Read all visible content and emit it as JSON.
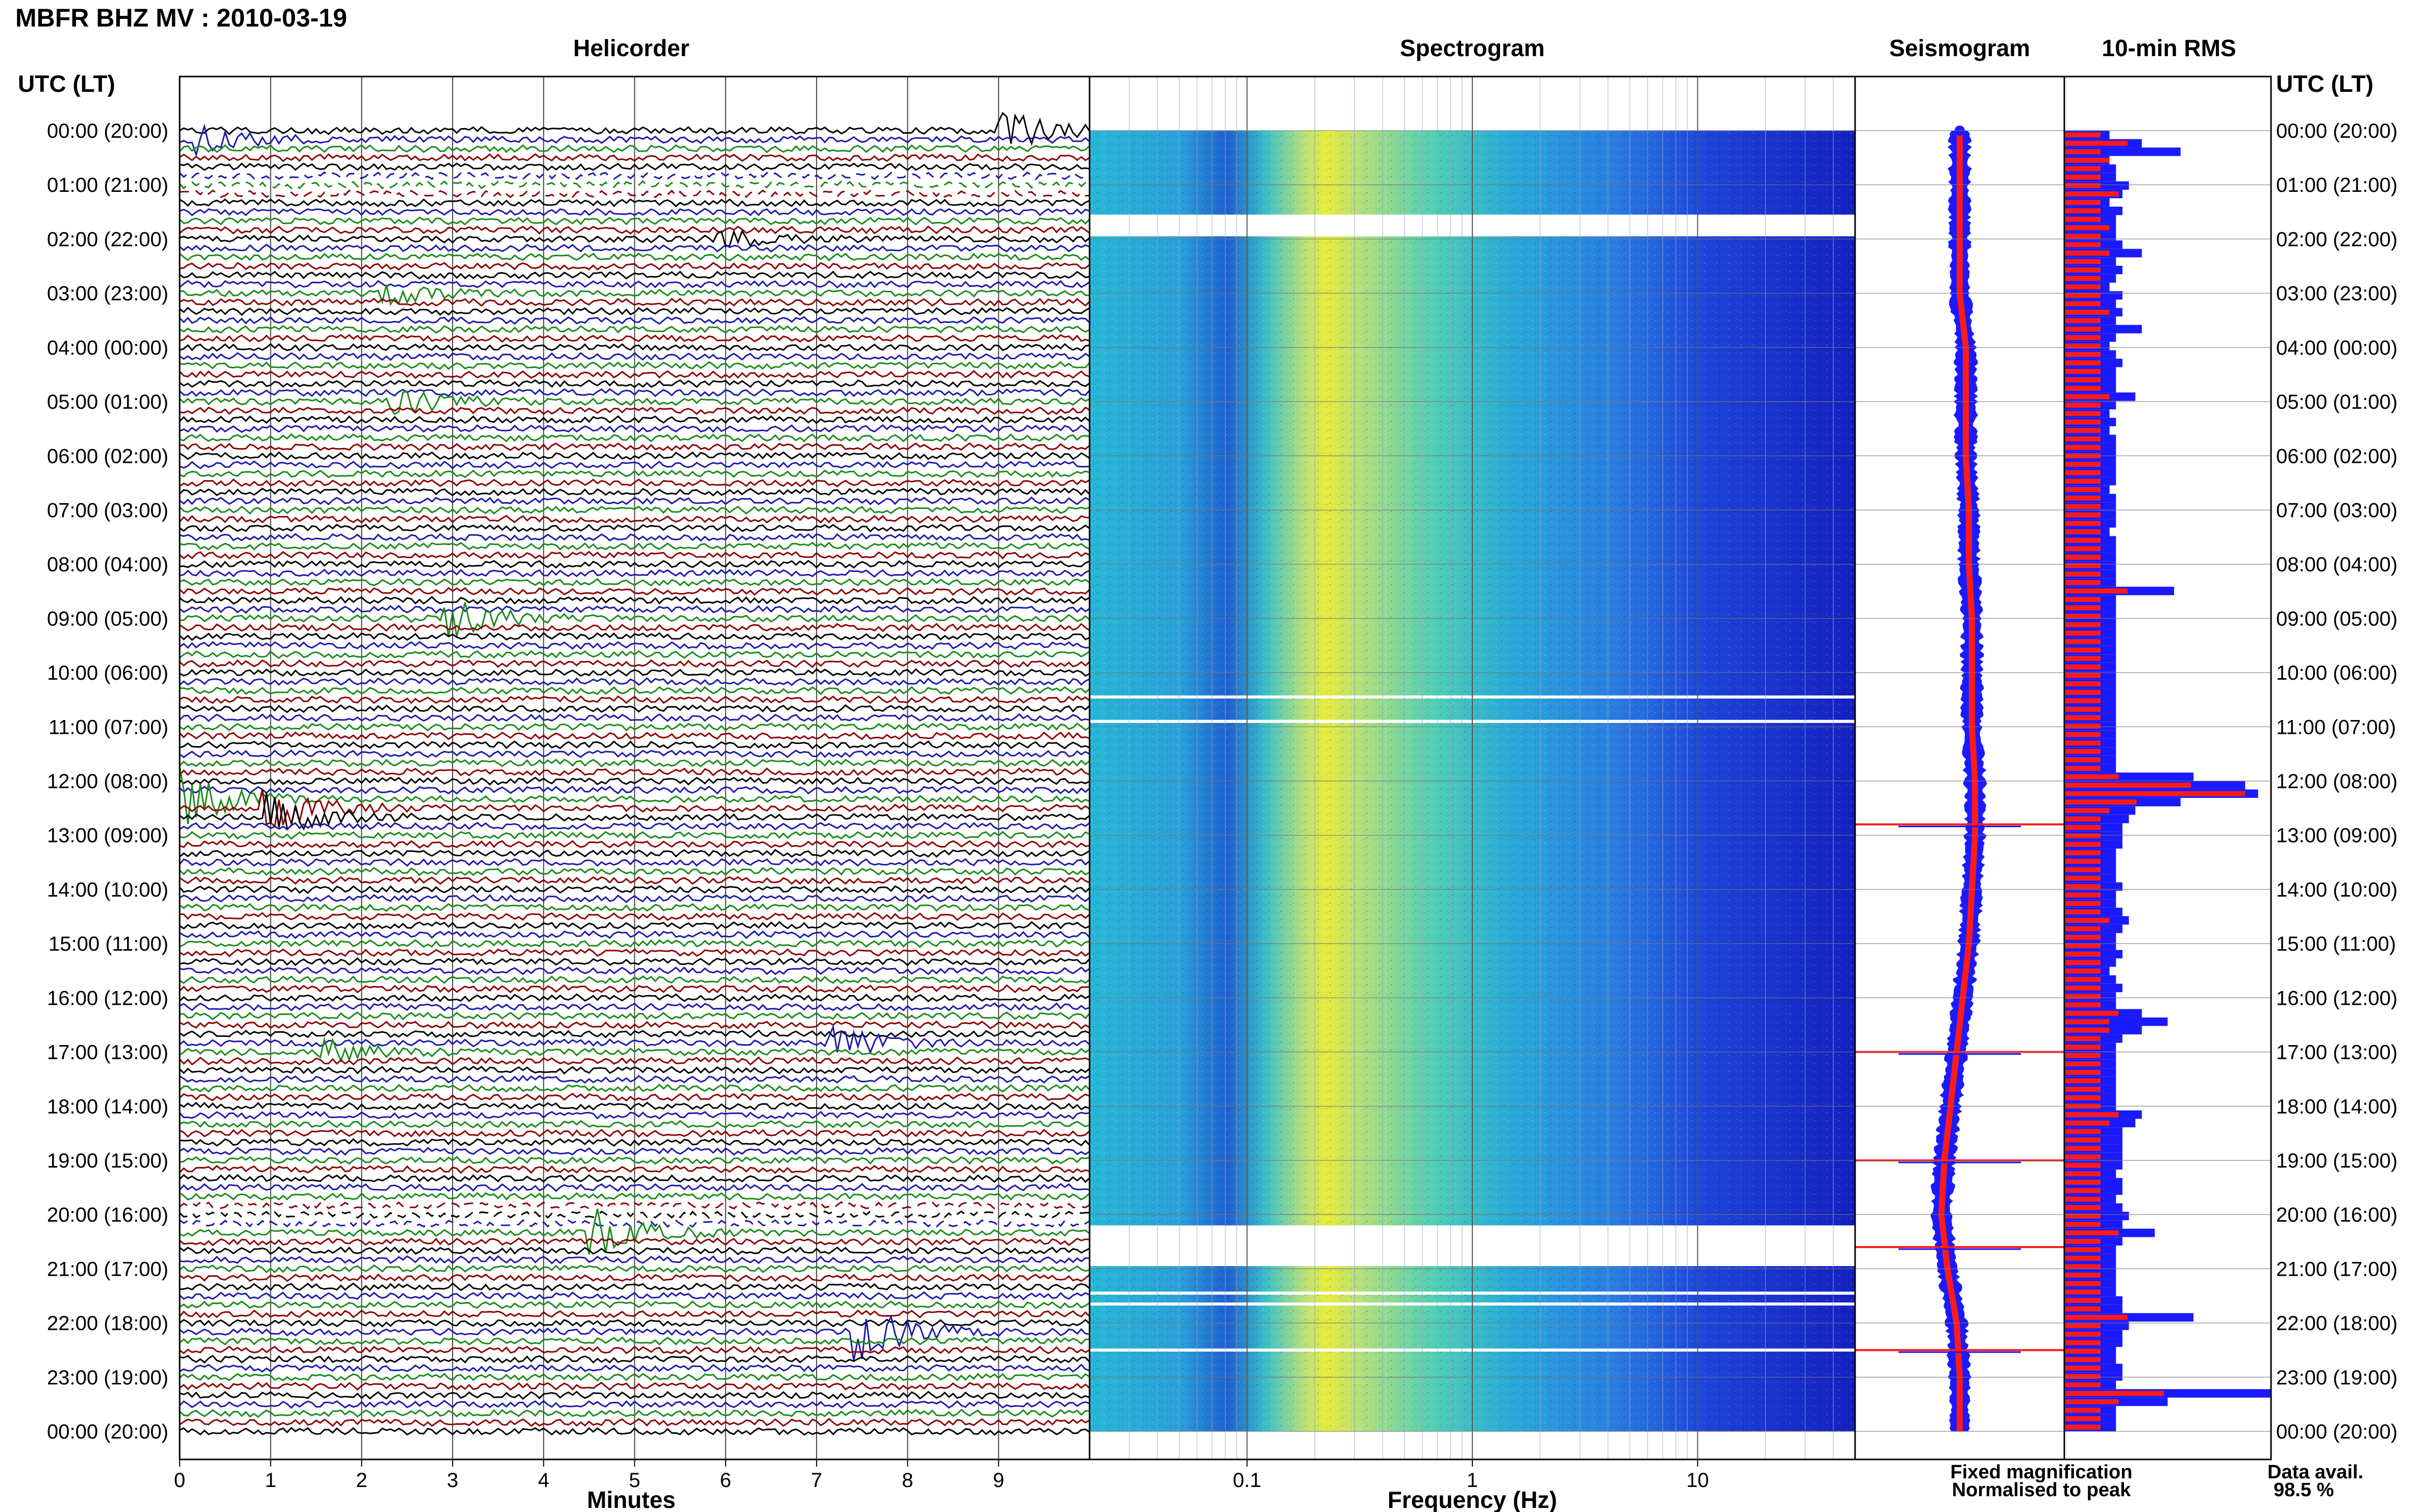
{
  "title": "MBFR BHZ MV : 2010-03-19",
  "panel_titles": {
    "helicorder": "Helicorder",
    "spectrogram": "Spectrogram",
    "seismogram": "Seismogram",
    "rms": "10-min RMS"
  },
  "axis_label_left": "UTC (LT)",
  "axis_label_right": "UTC (LT)",
  "time_labels": [
    "00:00 (20:00)",
    "01:00 (21:00)",
    "02:00 (22:00)",
    "03:00 (23:00)",
    "04:00 (00:00)",
    "05:00 (01:00)",
    "06:00 (02:00)",
    "07:00 (03:00)",
    "08:00 (04:00)",
    "09:00 (05:00)",
    "10:00 (06:00)",
    "11:00 (07:00)",
    "12:00 (08:00)",
    "13:00 (09:00)",
    "14:00 (10:00)",
    "15:00 (11:00)",
    "16:00 (12:00)",
    "17:00 (13:00)",
    "18:00 (14:00)",
    "19:00 (15:00)",
    "20:00 (16:00)",
    "21:00 (17:00)",
    "22:00 (18:00)",
    "23:00 (19:00)",
    "00:00 (20:00)"
  ],
  "minutes_ticks": [
    "0",
    "1",
    "2",
    "3",
    "4",
    "5",
    "6",
    "7",
    "8",
    "9"
  ],
  "minutes_label": "Minutes",
  "freq_ticks": [
    "0.1",
    "1",
    "10"
  ],
  "freq_label": "Frequency (Hz)",
  "legend": {
    "fixed": "Fixed magnification",
    "normalised": "Normalised to peak",
    "fixed_color": "#1a1aff",
    "normalised_color": "#ff1a1a"
  },
  "data_avail_label": "Data avail.",
  "data_avail_value": "98.5 %",
  "trace_colors": [
    "#000000",
    "#1a1aaa",
    "#1a8a1a",
    "#8b0000"
  ],
  "chart_data": [
    {
      "type": "line",
      "name": "helicorder",
      "x_unit": "minutes",
      "xlim": [
        0,
        10
      ],
      "rows_per_hour": 6,
      "hours": 24,
      "gap_hours": [
        1,
        20
      ],
      "events": [
        {
          "hour": 0,
          "minute": 9.1,
          "amp": 3.5
        },
        {
          "hour": 0.17,
          "minute": 0.2,
          "amp": 2.5
        },
        {
          "hour": 2,
          "minute": 6.0,
          "amp": 1.5
        },
        {
          "hour": 3,
          "minute": 2.3,
          "amp": 2.0
        },
        {
          "hour": 5,
          "minute": 2.4,
          "amp": 2.5
        },
        {
          "hour": 9,
          "minute": 3.0,
          "amp": 3.5
        },
        {
          "hour": 12.3,
          "minute": 0.0,
          "amp": 6.0
        },
        {
          "hour": 12.6,
          "minute": 1.0,
          "amp": 4.0
        },
        {
          "hour": 16.8,
          "minute": 7.2,
          "amp": 3.0
        },
        {
          "hour": 17.0,
          "minute": 1.6,
          "amp": 2.0
        },
        {
          "hour": 20.4,
          "minute": 4.6,
          "amp": 4.0
        },
        {
          "hour": 22.2,
          "minute": 7.5,
          "amp": 5.0
        }
      ]
    },
    {
      "type": "heatmap",
      "name": "spectrogram",
      "x_scale": "log",
      "xlim": [
        0.02,
        50
      ],
      "x_unit": "Hz",
      "gap_hours": [
        [
          1.55,
          1.95
        ],
        [
          20.2,
          20.95
        ]
      ],
      "line_gaps": [
        10.45,
        10.9,
        21.45,
        21.65,
        22.5
      ]
    },
    {
      "type": "line",
      "name": "seismogram",
      "center_offset": [
        0,
        0,
        0,
        0,
        0.1,
        0.1,
        0.1,
        0.15,
        0.15,
        0.2,
        0.2,
        0.2,
        0.25,
        0.25,
        0.2,
        0.15,
        0.05,
        -0.05,
        -0.15,
        -0.25,
        -0.3,
        -0.2,
        -0.05,
        0.0,
        0.0
      ],
      "spikes": [
        12.8,
        22.5,
        20.6,
        19.0,
        17.0
      ]
    },
    {
      "type": "bar",
      "name": "10-min RMS",
      "series": [
        {
          "name": "Fixed magnification",
          "values": [
            0.35,
            0.6,
            0.9,
            0.35,
            0.4,
            0.4,
            0.5,
            0.45,
            0.35,
            0.45,
            0.4,
            0.4,
            0.4,
            0.45,
            0.6,
            0.4,
            0.45,
            0.4,
            0.35,
            0.45,
            0.4,
            0.45,
            0.4,
            0.6,
            0.4,
            0.35,
            0.4,
            0.45,
            0.4,
            0.4,
            0.4,
            0.55,
            0.4,
            0.35,
            0.4,
            0.35,
            0.4,
            0.4,
            0.4,
            0.4,
            0.4,
            0.4,
            0.35,
            0.4,
            0.4,
            0.4,
            0.4,
            0.35,
            0.4,
            0.4,
            0.4,
            0.4,
            0.4,
            0.4,
            0.85,
            0.4,
            0.4,
            0.4,
            0.4,
            0.4,
            0.4,
            0.4,
            0.4,
            0.4,
            0.4,
            0.4,
            0.4,
            0.4,
            0.4,
            0.4,
            0.4,
            0.4,
            0.4,
            0.4,
            0.4,
            0.4,
            1.0,
            1.4,
            1.5,
            0.9,
            0.55,
            0.5,
            0.45,
            0.45,
            0.45,
            0.4,
            0.4,
            0.4,
            0.4,
            0.45,
            0.4,
            0.4,
            0.45,
            0.5,
            0.45,
            0.4,
            0.4,
            0.45,
            0.4,
            0.35,
            0.4,
            0.45,
            0.4,
            0.4,
            0.6,
            0.8,
            0.6,
            0.45,
            0.4,
            0.4,
            0.4,
            0.4,
            0.4,
            0.4,
            0.4,
            0.4,
            0.6,
            0.55,
            0.45,
            0.45,
            0.45,
            0.45,
            0.45,
            0.4,
            0.45,
            0.45,
            0.4,
            0.45,
            0.5,
            0.45,
            0.7,
            0.45,
            0.4,
            0.4,
            0.4,
            0.4,
            0.4,
            0.4,
            0.45,
            0.45,
            1.0,
            0.5,
            0.45,
            0.45,
            0.4,
            0.4,
            0.45,
            0.45,
            0.4,
            1.6,
            0.8,
            0.4,
            0.4,
            0.4
          ]
        },
        {
          "name": "Normalised to peak",
          "values": [
            0.2,
            0.35,
            0.2,
            0.25,
            0.2,
            0.2,
            0.2,
            0.3,
            0.2,
            0.2,
            0.2,
            0.25,
            0.2,
            0.2,
            0.25,
            0.2,
            0.2,
            0.2,
            0.2,
            0.2,
            0.2,
            0.25,
            0.2,
            0.2,
            0.2,
            0.2,
            0.2,
            0.2,
            0.2,
            0.2,
            0.2,
            0.25,
            0.2,
            0.2,
            0.2,
            0.2,
            0.2,
            0.2,
            0.2,
            0.2,
            0.2,
            0.2,
            0.2,
            0.2,
            0.2,
            0.2,
            0.2,
            0.2,
            0.2,
            0.2,
            0.2,
            0.2,
            0.2,
            0.2,
            0.35,
            0.2,
            0.2,
            0.2,
            0.2,
            0.2,
            0.2,
            0.2,
            0.2,
            0.2,
            0.2,
            0.2,
            0.2,
            0.2,
            0.2,
            0.2,
            0.2,
            0.2,
            0.2,
            0.2,
            0.2,
            0.2,
            0.3,
            0.7,
            1.0,
            0.4,
            0.25,
            0.2,
            0.2,
            0.2,
            0.2,
            0.2,
            0.2,
            0.2,
            0.2,
            0.2,
            0.2,
            0.2,
            0.2,
            0.25,
            0.2,
            0.2,
            0.2,
            0.2,
            0.2,
            0.2,
            0.2,
            0.2,
            0.2,
            0.2,
            0.3,
            0.25,
            0.25,
            0.2,
            0.2,
            0.2,
            0.2,
            0.2,
            0.2,
            0.2,
            0.2,
            0.2,
            0.3,
            0.25,
            0.2,
            0.2,
            0.2,
            0.2,
            0.2,
            0.2,
            0.2,
            0.2,
            0.2,
            0.2,
            0.2,
            0.2,
            0.3,
            0.2,
            0.2,
            0.2,
            0.2,
            0.2,
            0.2,
            0.2,
            0.2,
            0.2,
            0.35,
            0.2,
            0.2,
            0.2,
            0.2,
            0.2,
            0.2,
            0.2,
            0.2,
            0.55,
            0.3,
            0.2,
            0.2,
            0.2
          ]
        }
      ]
    }
  ]
}
